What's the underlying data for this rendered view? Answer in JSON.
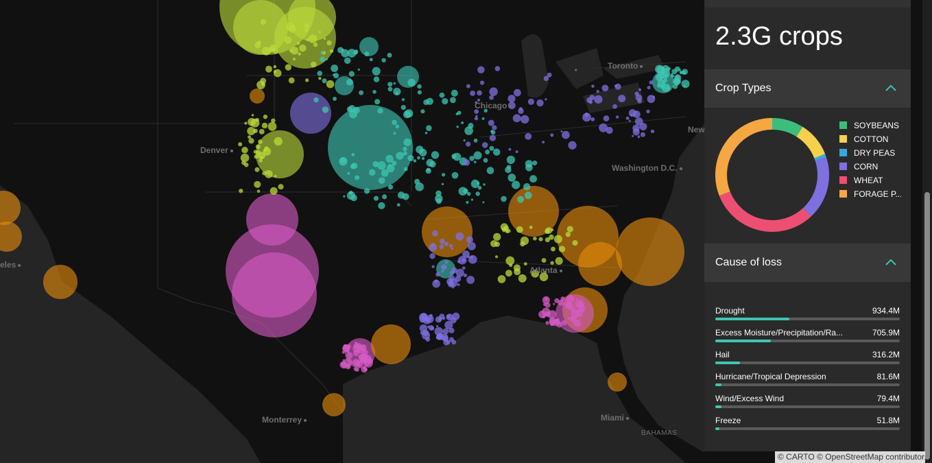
{
  "map": {
    "cities": [
      {
        "name": "Denver",
        "id": "denver"
      },
      {
        "name": "Chicago",
        "id": "chicago"
      },
      {
        "name": "Toronto",
        "id": "toronto"
      },
      {
        "name": "New",
        "id": "newyork"
      },
      {
        "name": "Washington D.C.",
        "id": "washington"
      },
      {
        "name": "Atlanta",
        "id": "atlanta"
      },
      {
        "name": "Monterrey",
        "id": "monterrey"
      },
      {
        "name": "Miami",
        "id": "miami"
      },
      {
        "name": "eles",
        "id": "losangeles"
      },
      {
        "name": "BAHAMAS",
        "id": "bahamas"
      }
    ],
    "colors": {
      "soybeans": "#3dbd7d",
      "cotton": "#f5d14b",
      "dry_peas": "#35a8e0",
      "corn": "#7e70e0",
      "wheat": "#ec4f72",
      "forage": "#f5a742",
      "pink": "#d65bc4",
      "teal": "#3ec5b3",
      "lime": "#b9d93a",
      "orange": "#e38b0c"
    }
  },
  "panel": {
    "headline": "2.3G crops",
    "crop_types": {
      "title": "Crop Types",
      "legend": [
        {
          "label": "SOYBEANS",
          "color": "#3dbd7d"
        },
        {
          "label": "COTTON",
          "color": "#f5d14b"
        },
        {
          "label": "DRY PEAS",
          "color": "#35a8e0"
        },
        {
          "label": "CORN",
          "color": "#7e70e0"
        },
        {
          "label": "WHEAT",
          "color": "#ec4f72"
        },
        {
          "label": "FORAGE P...",
          "color": "#f5a742"
        }
      ]
    },
    "cause_of_loss": {
      "title": "Cause of loss",
      "rows": [
        {
          "label": "Drought",
          "value": "934.4M",
          "amount": 934.4
        },
        {
          "label": "Excess Moisture/Precipitation/Ra...",
          "value": "705.9M",
          "amount": 705.9
        },
        {
          "label": "Hail",
          "value": "316.2M",
          "amount": 316.2
        },
        {
          "label": "Hurricane/Tropical Depression",
          "value": "81.6M",
          "amount": 81.6
        },
        {
          "label": "Wind/Excess Wind",
          "value": "79.4M",
          "amount": 79.4
        },
        {
          "label": "Freeze",
          "value": "51.8M",
          "amount": 51.8
        }
      ]
    }
  },
  "chart_data": {
    "type": "pie",
    "series": [
      {
        "name": "SOYBEANS",
        "value": 9
      },
      {
        "name": "COTTON",
        "value": 10
      },
      {
        "name": "DRY PEAS",
        "value": 1
      },
      {
        "name": "CORN",
        "value": 18
      },
      {
        "name": "WHEAT",
        "value": 31
      },
      {
        "name": "FORAGE P...",
        "value": 31
      }
    ]
  },
  "attribution": "© CARTO © OpenStreetMap contributors"
}
